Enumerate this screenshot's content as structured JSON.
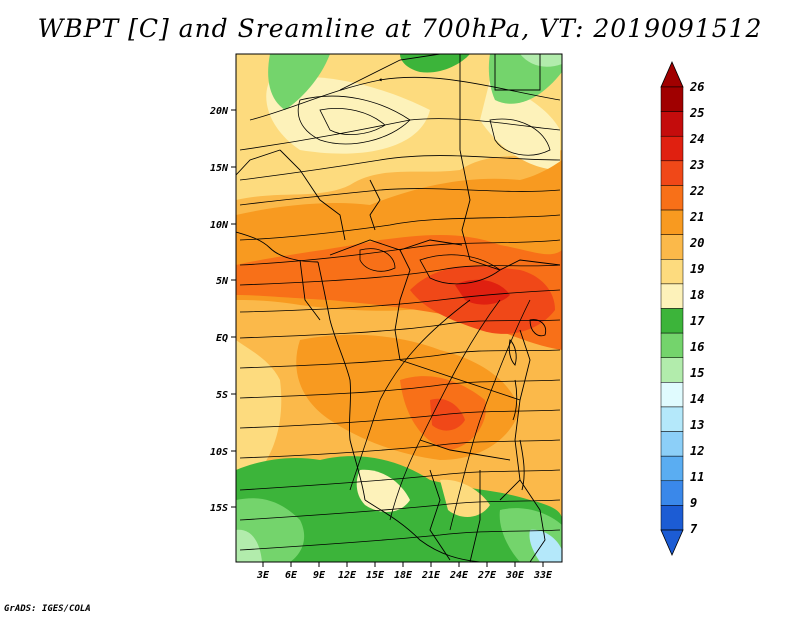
{
  "title": "WBPT [C] and Sreamline at 700hPa, VT: 2019091512",
  "footer": "GrADS: IGES/COLA",
  "map": {
    "variable": "WBPT",
    "units": "C",
    "level": "700hPa",
    "valid_time": "2019091512",
    "lat_ticks": [
      "20N",
      "15N",
      "10N",
      "5N",
      "EQ",
      "5S",
      "10S",
      "15S"
    ],
    "lon_ticks": [
      "3E",
      "6E",
      "9E",
      "12E",
      "15E",
      "18E",
      "21E",
      "24E",
      "27E",
      "30E",
      "33E"
    ]
  },
  "colorbar": {
    "labels": [
      "26",
      "25",
      "24",
      "23",
      "22",
      "21",
      "20",
      "19",
      "18",
      "17",
      "16",
      "15",
      "14",
      "13",
      "12",
      "11",
      "9",
      "7"
    ],
    "colors": [
      "#a00000",
      "#c40c0c",
      "#e02010",
      "#f04818",
      "#f87018",
      "#f89a20",
      "#fbb94a",
      "#fddb7e",
      "#fdf2ba",
      "#3cb43a",
      "#74d46c",
      "#b2ecac",
      "#e0fbfe",
      "#b4e8fa",
      "#8ccff8",
      "#5aadf2",
      "#3a88ea",
      "#1c5cd4"
    ],
    "top_arrow_color": "#a00000",
    "bottom_arrow_color": "#1c5cd4"
  }
}
